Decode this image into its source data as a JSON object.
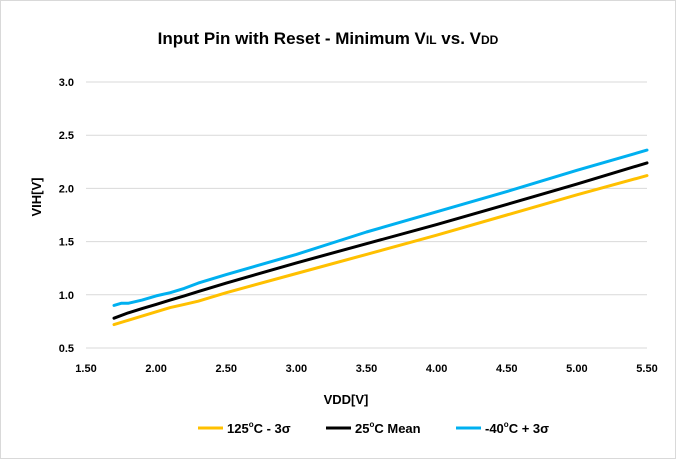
{
  "chart_data": {
    "type": "line",
    "title": "Input Pin with Reset - Minimum VIL vs. VDD",
    "title_parts": {
      "lead": "Input Pin with Reset - Minimum V",
      "sub1": "IL",
      "mid": " vs. V",
      "sub2": "DD"
    },
    "xlabel": "VDD[V]",
    "ylabel": "VIH[V]",
    "xlim": [
      1.5,
      5.5
    ],
    "ylim": [
      0.5,
      3.0
    ],
    "xticks": [
      "1.50",
      "2.00",
      "2.50",
      "3.00",
      "3.50",
      "4.00",
      "4.50",
      "5.00",
      "5.50"
    ],
    "yticks": [
      "0.5",
      "1.0",
      "1.5",
      "2.0",
      "2.5",
      "3.0"
    ],
    "grid": "horizontal",
    "legend_position": "bottom",
    "series": [
      {
        "name": "125°C - 3σ",
        "name_parts": {
          "num": "125",
          "deg": "o",
          "rest": "C - 3σ"
        },
        "color": "#FFC000",
        "x": [
          1.7,
          1.8,
          1.9,
          2.0,
          2.1,
          2.2,
          2.3,
          2.5,
          3.0,
          3.5,
          4.0,
          4.5,
          5.0,
          5.5
        ],
        "y": [
          0.72,
          0.76,
          0.8,
          0.84,
          0.88,
          0.91,
          0.94,
          1.02,
          1.2,
          1.38,
          1.56,
          1.75,
          1.94,
          2.12
        ]
      },
      {
        "name": "25°C Mean",
        "name_parts": {
          "num": "25",
          "deg": "o",
          "rest": "C Mean"
        },
        "color": "#000000",
        "x": [
          1.7,
          1.8,
          1.9,
          2.0,
          2.1,
          2.2,
          2.3,
          2.5,
          3.0,
          3.5,
          4.0,
          4.5,
          5.0,
          5.5
        ],
        "y": [
          0.78,
          0.83,
          0.87,
          0.91,
          0.95,
          0.99,
          1.03,
          1.11,
          1.3,
          1.48,
          1.66,
          1.85,
          2.04,
          2.24
        ]
      },
      {
        "name": "-40°C + 3σ",
        "name_parts": {
          "num": "-40",
          "deg": "o",
          "rest": "C + 3σ"
        },
        "color": "#00B0F0",
        "x": [
          1.7,
          1.75,
          1.8,
          1.9,
          2.0,
          2.1,
          2.2,
          2.3,
          2.5,
          3.0,
          3.5,
          4.0,
          4.5,
          5.0,
          5.5
        ],
        "y": [
          0.9,
          0.92,
          0.92,
          0.95,
          0.99,
          1.02,
          1.06,
          1.11,
          1.19,
          1.38,
          1.59,
          1.78,
          1.97,
          2.17,
          2.36
        ]
      }
    ]
  }
}
